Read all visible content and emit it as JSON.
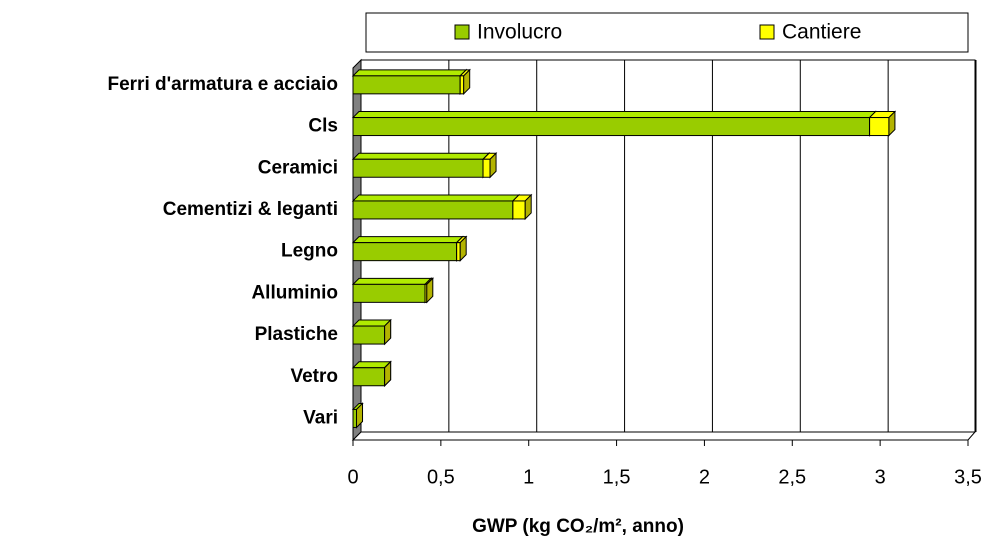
{
  "chart_data": {
    "type": "bar",
    "orientation": "horizontal",
    "stacked": true,
    "categories": [
      "Ferri d'armatura e acciaio",
      "Cls",
      "Ceramici",
      "Cementizi & leganti",
      "Legno",
      "Alluminio",
      "Plastiche",
      "Vetro",
      "Vari"
    ],
    "series": [
      {
        "name": "Involucro",
        "color": "#99cc00",
        "values": [
          0.61,
          2.94,
          0.74,
          0.91,
          0.59,
          0.41,
          0.18,
          0.18,
          0.02
        ]
      },
      {
        "name": "Cantiere",
        "color": "#ffff00",
        "values": [
          0.02,
          0.11,
          0.04,
          0.07,
          0.02,
          0.01,
          0.0,
          0.0,
          0.0
        ]
      }
    ],
    "x_label": "GWP (kg CO₂/m², anno)",
    "xlim": [
      0,
      3.5
    ],
    "xticks": [
      0,
      {
        "value": 0.5,
        "label": "0,5"
      },
      1,
      {
        "value": 1.5,
        "label": "1,5"
      },
      2,
      {
        "value": 2.5,
        "label": "2,5"
      },
      3,
      {
        "value": 3.5,
        "label": "3,5"
      }
    ],
    "grid": true,
    "legend": "top"
  }
}
